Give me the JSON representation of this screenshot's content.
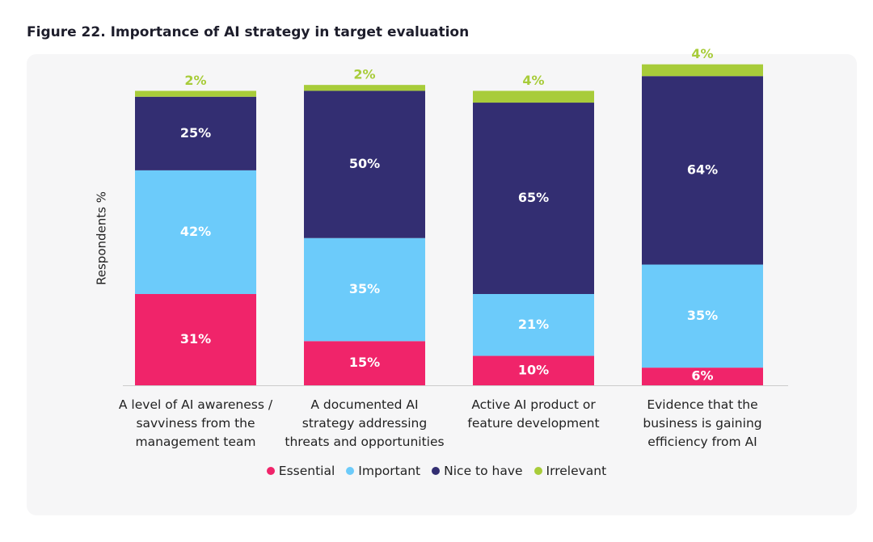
{
  "chart_data": {
    "type": "stacked_bar",
    "title": "Figure 22. Importance of AI strategy in target evaluation",
    "y_label": "Respondents %",
    "categories": [
      "A level of AI awareness / savviness from the management team",
      "A documented AI strategy addressing threats and opportunities",
      "Active AI product or feature development",
      "Evidence that the business is gaining efficiency from AI"
    ],
    "series": [
      {
        "name": "Essential",
        "color": "#f0246a",
        "values": [
          31,
          15,
          10,
          6
        ],
        "value_labels": [
          "31%",
          "15%",
          "10%",
          "6%"
        ]
      },
      {
        "name": "Important",
        "color": "#6ccbfa",
        "values": [
          42,
          35,
          21,
          35
        ],
        "value_labels": [
          "42%",
          "35%",
          "21%",
          "35%"
        ]
      },
      {
        "name": "Nice to have",
        "color": "#332e72",
        "values": [
          25,
          50,
          65,
          64
        ],
        "value_labels": [
          "25%",
          "50%",
          "65%",
          "64%"
        ]
      },
      {
        "name": "Irrelevant",
        "color": "#a8cc3a",
        "values": [
          2,
          2,
          4,
          4
        ],
        "value_labels": [
          "2%",
          "2%",
          "4%",
          "4%"
        ]
      }
    ],
    "ylim": [
      0,
      110
    ]
  }
}
